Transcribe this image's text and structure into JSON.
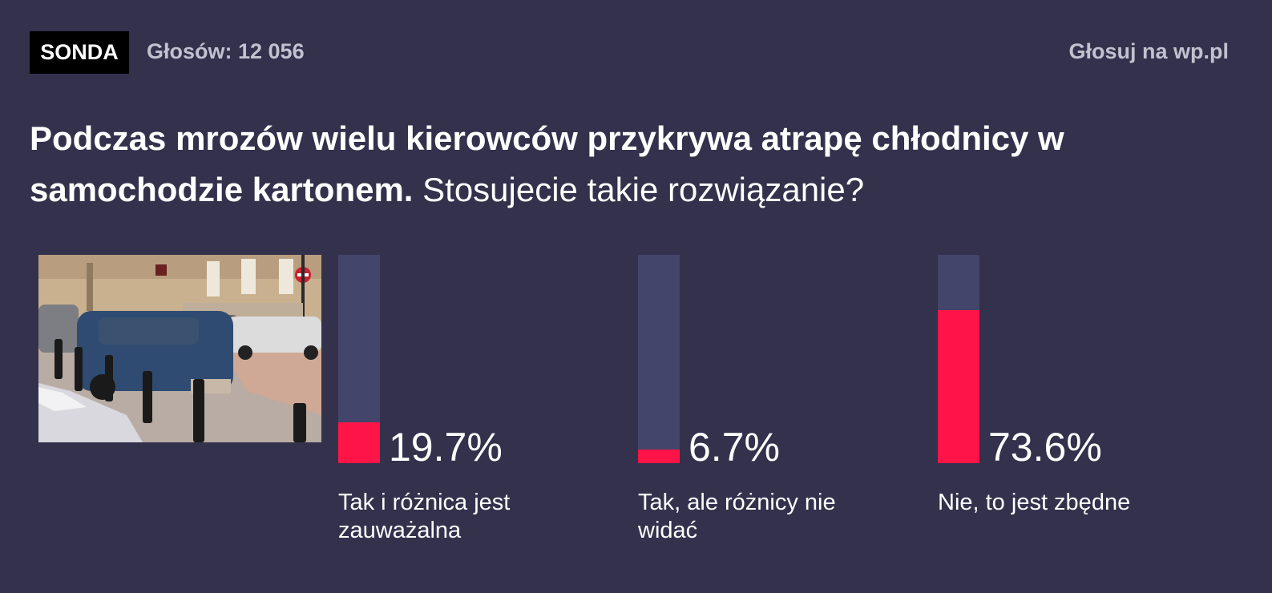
{
  "header": {
    "badge": "SONDA",
    "votes_label": "Głosów: 12 056",
    "vote_link": "Głosuj na wp.pl"
  },
  "question": {
    "bold_part": "Podczas mrozów wielu kierowców przykrywa atrapę chłodnicy w samochodzie kartonem.",
    "normal_part": " Stosujecie takie rozwiązanie?"
  },
  "image": {
    "description": "photo-street-cars-parked"
  },
  "colors": {
    "background": "#33314c",
    "track": "#44456a",
    "fill": "#ff1447",
    "muted_text": "#c1c1cf"
  },
  "answers": [
    {
      "label": "Tak i różnica jest zauważalna",
      "percent_text": "19.7%",
      "percent": 19.7
    },
    {
      "label": "Tak, ale różnicy nie widać",
      "percent_text": "6.7%",
      "percent": 6.7
    },
    {
      "label": "Nie, to jest zbędne",
      "percent_text": "73.6%",
      "percent": 73.6
    }
  ],
  "chart_data": {
    "type": "bar",
    "title": "Podczas mrozów wielu kierowców przykrywa atrapę chłodnicy w samochodzie kartonem. Stosujecie takie rozwiązanie?",
    "categories": [
      "Tak i różnica jest zauważalna",
      "Tak, ale różnicy nie widać",
      "Nie, to jest zbędne"
    ],
    "values": [
      19.7,
      6.7,
      73.6
    ],
    "unit": "%",
    "total_votes": 12056,
    "xlabel": "",
    "ylabel": "",
    "ylim": [
      0,
      100
    ],
    "grid": false,
    "legend": "none"
  }
}
